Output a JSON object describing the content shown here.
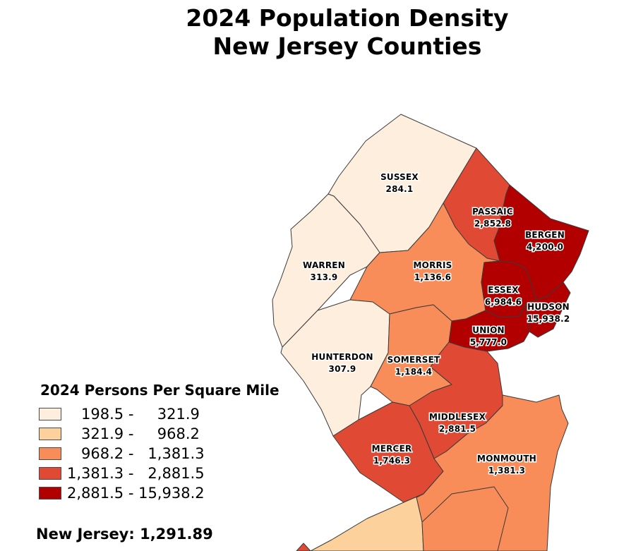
{
  "title": {
    "line1": "2024 Population Density",
    "line2": "New Jersey Counties"
  },
  "colors": {
    "c1": "#fdeedd",
    "c2": "#fcd19b",
    "c3": "#f88d5a",
    "c4": "#e04a34",
    "c5": "#b20000",
    "border": "#3a3a3a"
  },
  "counties": [
    {
      "name": "SUSSEX",
      "value": "284.1",
      "class": 1
    },
    {
      "name": "PASSAIC",
      "value": "2,852.8",
      "class": 4
    },
    {
      "name": "BERGEN",
      "value": "4,200.0",
      "class": 5
    },
    {
      "name": "WARREN",
      "value": "313.9",
      "class": 1
    },
    {
      "name": "MORRIS",
      "value": "1,136.6",
      "class": 3
    },
    {
      "name": "ESSEX",
      "value": "6,984.6",
      "class": 5
    },
    {
      "name": "HUDSON",
      "value": "15,938.2",
      "class": 5
    },
    {
      "name": "UNION",
      "value": "5,777.0",
      "class": 5
    },
    {
      "name": "HUNTERDON",
      "value": "307.9",
      "class": 1
    },
    {
      "name": "SOMERSET",
      "value": "1,184.4",
      "class": 3
    },
    {
      "name": "MIDDLESEX",
      "value": "2,881.5",
      "class": 4
    },
    {
      "name": "MERCER",
      "value": "1,746.3",
      "class": 4
    },
    {
      "name": "MONMOUTH",
      "value": "1,381.3",
      "class": 3
    }
  ],
  "legend": {
    "title": "2024 Persons Per Square Mile",
    "classes": [
      {
        "range": "   198.5 -     321.9",
        "color": "#fdeedd"
      },
      {
        "range": "   321.9 -     968.2",
        "color": "#fcd19b"
      },
      {
        "range": "   968.2 -   1,381.3",
        "color": "#f88d5a"
      },
      {
        "range": "1,381.3 -   2,881.5",
        "color": "#e04a34"
      },
      {
        "range": "2,881.5 - 15,938.2",
        "color": "#b20000"
      }
    ]
  },
  "state_summary": "New Jersey: 1,291.89"
}
